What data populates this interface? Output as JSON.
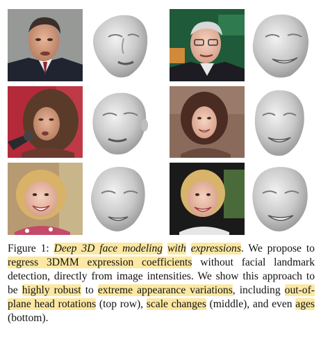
{
  "figure": {
    "panels": [
      {
        "photo": "man-in-suit-face-photo",
        "mesh": "3d-face-mesh-rotated"
      },
      {
        "photo": "older-man-glasses-face-photo",
        "mesh": "3d-face-mesh-smiling"
      },
      {
        "photo": "woman-microphone-face-photo",
        "mesh": "3d-face-mesh-tilted"
      },
      {
        "photo": "smiling-woman-face-photo",
        "mesh": "3d-face-mesh-smile-teeth"
      },
      {
        "photo": "toddler-girl-face-photo",
        "mesh": "3d-face-mesh-child"
      },
      {
        "photo": "smiling-child-face-photo",
        "mesh": "3d-face-mesh-child-smile"
      }
    ]
  },
  "caption": {
    "label": "Figure 1:",
    "hl1": "Deep 3D face modeling",
    "t1": " ",
    "hl2": "with",
    "t2": " ",
    "hl3": "expressions",
    "t3": ". We propose to ",
    "hl4": "regress 3DMM expression coefficients",
    "t4": " without facial landmark detection, directly from image intensities. We show this approach to be ",
    "hl5": "highly robust",
    "t5": " to ",
    "hl6": "extreme appearance variations",
    "t6": ", including ",
    "hl7": "out-of-plane head rotations",
    "t7": " (top row), ",
    "hl8": "scale changes",
    "t8": " (middle), and even ",
    "hl9": "ages",
    "t9": " (bottom)."
  }
}
